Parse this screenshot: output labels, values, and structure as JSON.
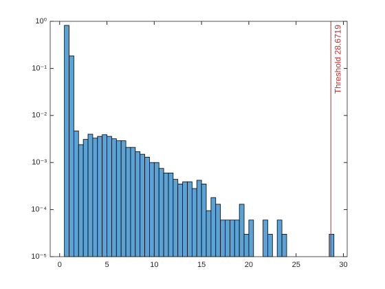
{
  "chart_data": {
    "type": "histogram",
    "bins": [
      0.5,
      1,
      1.5,
      2,
      2.5,
      3,
      3.5,
      4,
      4.5,
      5,
      5.5,
      6,
      6.5,
      7,
      7.5,
      8,
      8.5,
      9,
      9.5,
      10,
      10.5,
      11,
      11.5,
      12,
      12.5,
      13,
      13.5,
      14,
      14.5,
      15,
      15.5,
      16,
      16.5,
      17,
      17.5,
      18,
      18.5,
      19,
      19.5,
      20,
      20.5,
      21,
      21.5,
      22,
      22.5,
      23,
      23.5,
      24,
      24.5,
      25,
      25.5,
      26,
      26.5,
      27,
      27.5,
      28,
      28.5,
      29
    ],
    "values": [
      0.82,
      0.185,
      0.0047,
      0.0024,
      0.0031,
      0.004,
      0.0033,
      0.0036,
      0.0039,
      0.0036,
      0.0032,
      0.0029,
      0.0029,
      0.0021,
      0.0021,
      0.0017,
      0.0015,
      0.0013,
      0.001,
      0.001,
      0.00075,
      0.0006,
      0.0006,
      0.00044,
      0.00035,
      0.00039,
      0.00039,
      0.00028,
      0.00042,
      0.00035,
      9.5e-05,
      0.00018,
      0.00013,
      6e-05,
      6e-05,
      6e-05,
      6e-05,
      0.00013,
      3e-05,
      6e-05,
      0,
      0,
      6e-05,
      3e-05,
      0,
      6e-05,
      3e-05,
      0,
      0,
      0,
      0,
      0,
      0,
      0,
      0,
      0,
      3e-05
    ],
    "color": "#5ba3d6",
    "edgecolor": "#000000",
    "log_y": true,
    "xlim": [
      -1,
      30.4
    ],
    "xticks": [
      0,
      5,
      10,
      15,
      20,
      25,
      30
    ],
    "ylim": [
      1e-05,
      1
    ],
    "yticks": [
      {
        "value": 1e-05,
        "label": "10⁻⁵"
      },
      {
        "value": 0.0001,
        "label": "10⁻⁴"
      },
      {
        "value": 0.001,
        "label": "10⁻³"
      },
      {
        "value": 0.01,
        "label": "10⁻²"
      },
      {
        "value": 0.1,
        "label": "10⁻¹"
      },
      {
        "value": 1,
        "label": "10⁰"
      }
    ],
    "annotations": [
      {
        "x": 28.6719,
        "text": "Threshold 28.6719",
        "color": "#d62728"
      }
    ]
  }
}
